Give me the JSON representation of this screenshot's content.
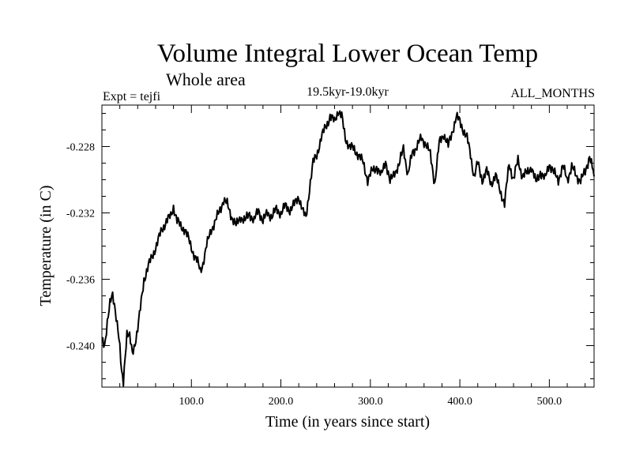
{
  "chart_data": {
    "type": "line",
    "title": "Volume Integral Lower Ocean Temp",
    "subtitle": "Whole area",
    "left_label": "Expt = tejfi",
    "center_label": "19.5kyr-19.0kyr",
    "right_label": "ALL_MONTHS",
    "xlabel": "Time (in years since start)",
    "ylabel": "Temperature (in C)",
    "xlim": [
      0,
      550
    ],
    "ylim": [
      -0.2425,
      -0.2255
    ],
    "xticks": [
      100,
      200,
      300,
      400,
      500
    ],
    "xtick_labels": [
      "100.0",
      "200.0",
      "300.0",
      "400.0",
      "500.0"
    ],
    "yticks": [
      -0.24,
      -0.236,
      -0.232,
      -0.228
    ],
    "ytick_labels": [
      "-0.240",
      "-0.236",
      "-0.232",
      "-0.228"
    ],
    "grid": false,
    "series": [
      {
        "name": "Volume Integral Lower Ocean Temp",
        "color": "#000000",
        "x": [
          0,
          3,
          6,
          9,
          12,
          15,
          18,
          20,
          22,
          24,
          26,
          28,
          31,
          34,
          37,
          40,
          43,
          47,
          52,
          57,
          62,
          67,
          72,
          77,
          80,
          84,
          88,
          93,
          98,
          103,
          107,
          110,
          113,
          117,
          122,
          127,
          132,
          136,
          140,
          145,
          150,
          155,
          160,
          165,
          170,
          175,
          180,
          185,
          190,
          195,
          200,
          205,
          210,
          215,
          220,
          225,
          228,
          232,
          236,
          240,
          245,
          250,
          255,
          260,
          264,
          268,
          272,
          277,
          282,
          287,
          292,
          297,
          302,
          307,
          312,
          317,
          322,
          327,
          332,
          337,
          342,
          347,
          352,
          357,
          362,
          367,
          372,
          377,
          382,
          387,
          392,
          396,
          400,
          404,
          408,
          412,
          416,
          420,
          425,
          430,
          435,
          440,
          445,
          450,
          455,
          460,
          465,
          470,
          475,
          480,
          485,
          490,
          495,
          500,
          505,
          510,
          515,
          520,
          525,
          530,
          535,
          540,
          545,
          550
        ],
        "y": [
          -0.2397,
          -0.24,
          -0.2385,
          -0.2375,
          -0.237,
          -0.2378,
          -0.239,
          -0.2402,
          -0.2417,
          -0.2422,
          -0.2405,
          -0.2392,
          -0.2395,
          -0.2405,
          -0.2398,
          -0.239,
          -0.2378,
          -0.236,
          -0.2352,
          -0.2345,
          -0.2338,
          -0.233,
          -0.2325,
          -0.2322,
          -0.2316,
          -0.2325,
          -0.2328,
          -0.233,
          -0.2338,
          -0.2345,
          -0.235,
          -0.2355,
          -0.235,
          -0.234,
          -0.233,
          -0.2325,
          -0.2318,
          -0.2312,
          -0.2315,
          -0.2322,
          -0.2328,
          -0.2322,
          -0.2325,
          -0.232,
          -0.2325,
          -0.2318,
          -0.2325,
          -0.232,
          -0.2322,
          -0.2318,
          -0.232,
          -0.2316,
          -0.2318,
          -0.2315,
          -0.231,
          -0.232,
          -0.2323,
          -0.2305,
          -0.229,
          -0.2285,
          -0.2275,
          -0.2268,
          -0.2262,
          -0.2265,
          -0.2258,
          -0.2262,
          -0.2275,
          -0.228,
          -0.2282,
          -0.2285,
          -0.229,
          -0.23,
          -0.2295,
          -0.2292,
          -0.2298,
          -0.2288,
          -0.2302,
          -0.2295,
          -0.2292,
          -0.228,
          -0.2298,
          -0.2283,
          -0.228,
          -0.2275,
          -0.2278,
          -0.2285,
          -0.2302,
          -0.2278,
          -0.2272,
          -0.228,
          -0.227,
          -0.2262,
          -0.2265,
          -0.227,
          -0.2275,
          -0.2285,
          -0.2298,
          -0.229,
          -0.23,
          -0.2295,
          -0.2302,
          -0.2298,
          -0.2306,
          -0.2315,
          -0.229,
          -0.23,
          -0.2288,
          -0.2298,
          -0.2296,
          -0.2292,
          -0.2302,
          -0.2295,
          -0.23,
          -0.229,
          -0.2296,
          -0.23,
          -0.2292,
          -0.23,
          -0.2292,
          -0.2298,
          -0.23,
          -0.2296,
          -0.2285,
          -0.2298
        ]
      }
    ]
  }
}
